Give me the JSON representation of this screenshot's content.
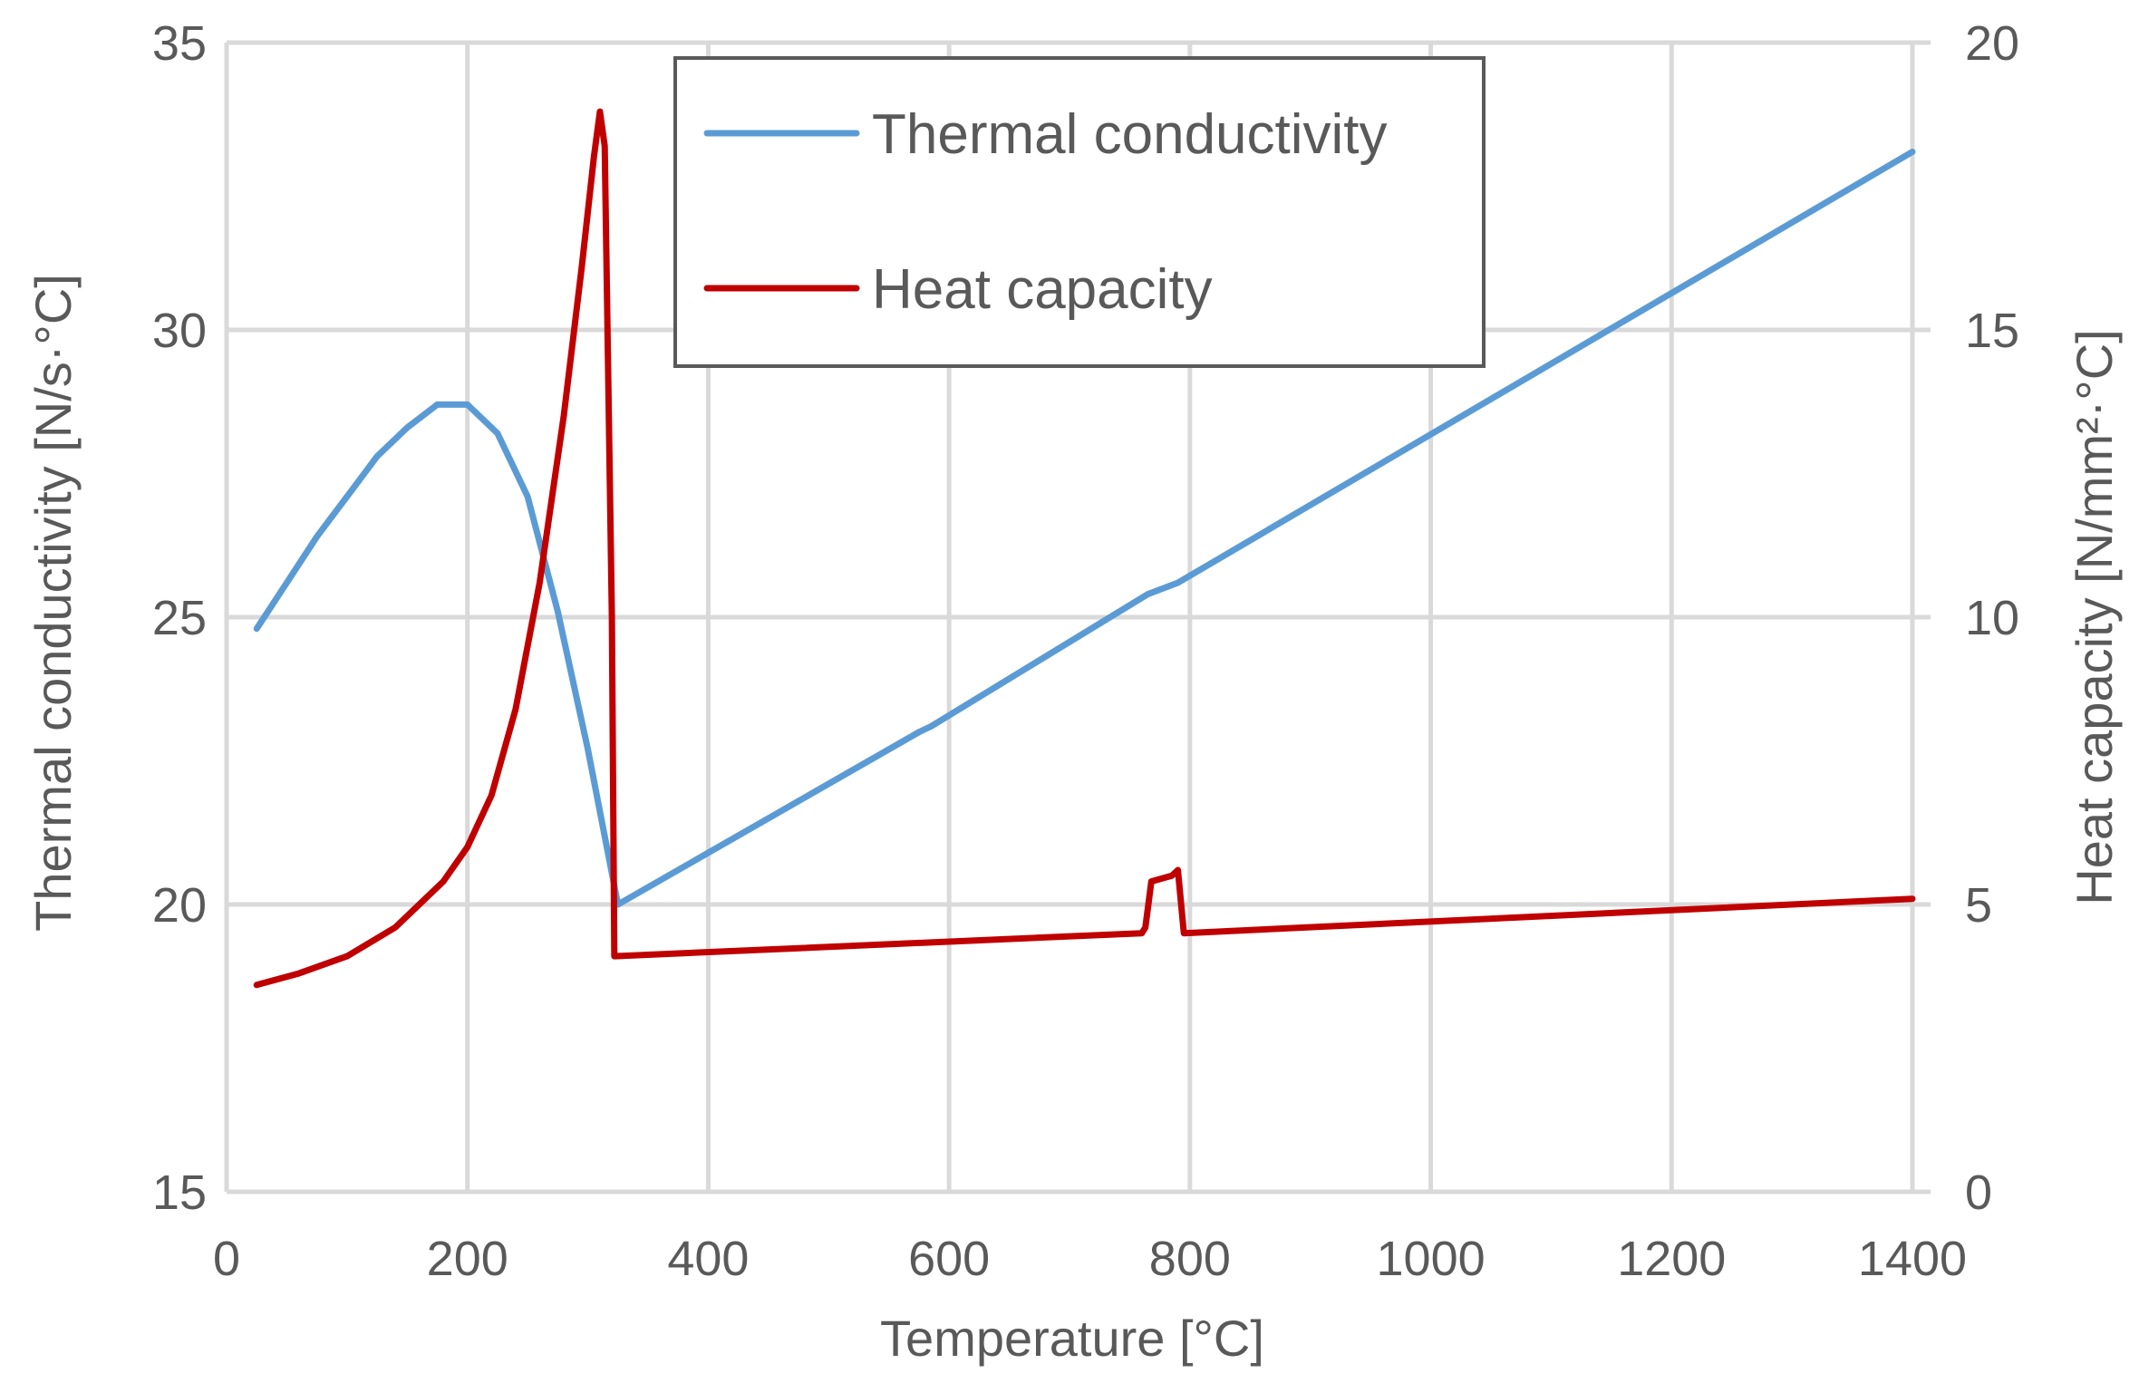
{
  "chart_data": {
    "type": "line",
    "title": "",
    "xlabel": "Temperature [°C]",
    "ylabel": "Thermal conductivity [N/s·°C]",
    "y2label": "Heat capacity [N/mm²·°C]",
    "xlim": [
      0,
      1400
    ],
    "ylim": [
      15,
      35
    ],
    "y2lim": [
      0,
      20
    ],
    "x_ticks": [
      0,
      200,
      400,
      600,
      800,
      1000,
      1200,
      1400
    ],
    "x_tick_labels": [
      "0",
      "200",
      "400",
      "600",
      "800",
      "1000",
      "1200",
      "1400"
    ],
    "y_ticks": [
      15,
      20,
      25,
      30,
      35
    ],
    "y_tick_labels": [
      "15",
      "20",
      "25",
      "30",
      "35"
    ],
    "y2_ticks": [
      0,
      5,
      10,
      15,
      20
    ],
    "y2_tick_labels": [
      "0",
      "5",
      "10",
      "15",
      "20"
    ],
    "grid": true,
    "legend_position": "top-center",
    "series": [
      {
        "name": "Thermal conductivity",
        "axis": "left",
        "color": "#5B9BD5",
        "x": [
          25,
          50,
          75,
          100,
          125,
          150,
          175,
          200,
          225,
          250,
          275,
          300,
          325,
          575,
          585,
          765,
          790,
          1400
        ],
        "y": [
          24.8,
          25.6,
          26.4,
          27.1,
          27.8,
          28.3,
          28.7,
          28.7,
          28.2,
          27.1,
          25.1,
          22.7,
          20.0,
          23.0,
          23.1,
          25.4,
          25.6,
          33.1
        ]
      },
      {
        "name": "Heat capacity",
        "axis": "right",
        "color": "#C00000",
        "x": [
          25,
          60,
          100,
          140,
          180,
          200,
          220,
          240,
          260,
          280,
          295,
          305,
          310,
          314,
          320,
          322,
          760,
          763,
          768,
          785,
          790,
          795,
          1400
        ],
        "y": [
          3.6,
          3.8,
          4.1,
          4.6,
          5.4,
          6.0,
          6.9,
          8.4,
          10.6,
          13.5,
          16.1,
          18.0,
          18.8,
          18.2,
          10.0,
          4.1,
          4.5,
          4.6,
          5.4,
          5.5,
          5.6,
          4.5,
          5.1
        ]
      }
    ]
  }
}
